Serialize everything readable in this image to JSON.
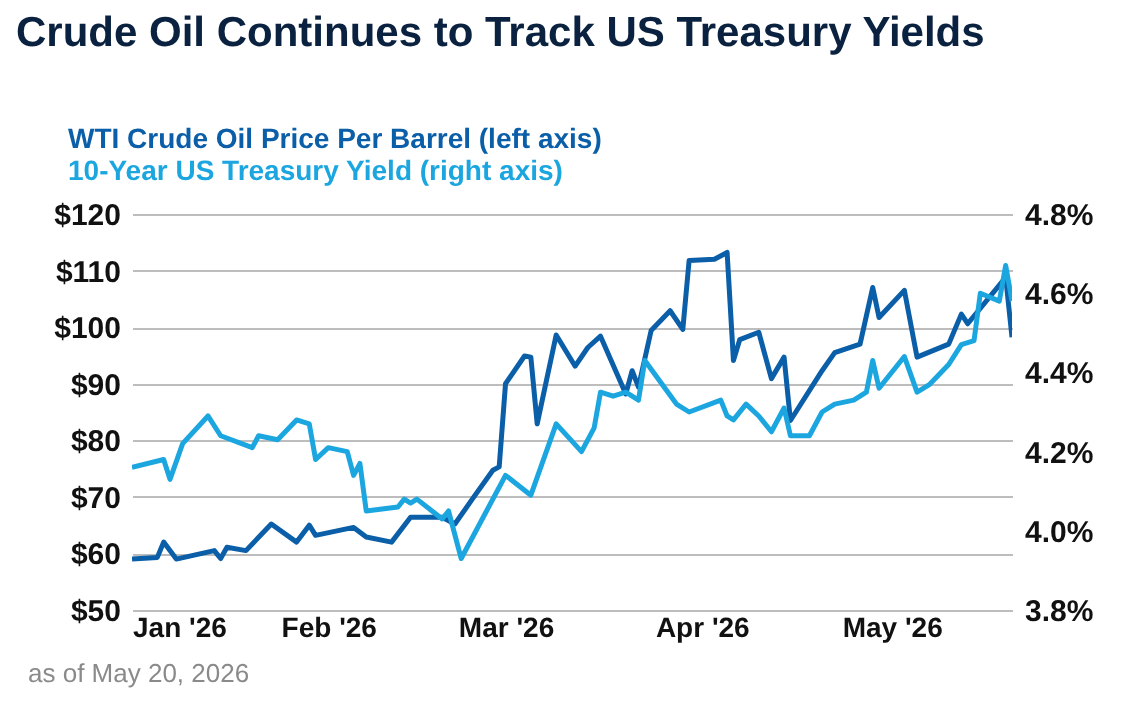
{
  "chart_data": {
    "type": "line",
    "title": "Crude Oil Continues to Track US Treasury Yields",
    "annotations": [
      "as of May 20, 2026"
    ],
    "xlim": [
      "2026-01-01",
      "2026-05-20"
    ],
    "xticks": [
      {
        "value": "2026-01-01",
        "label": "Jan '26"
      },
      {
        "value": "2026-02-01",
        "label": "Feb '26"
      },
      {
        "value": "2026-03-01",
        "label": "Mar '26"
      },
      {
        "value": "2026-04-01",
        "label": "Apr '26"
      },
      {
        "value": "2026-05-01",
        "label": "May '26"
      }
    ],
    "ylim": [
      50,
      120
    ],
    "yticks": [
      {
        "value": 50,
        "label": "$50"
      },
      {
        "value": 60,
        "label": "$60"
      },
      {
        "value": 70,
        "label": "$70"
      },
      {
        "value": 80,
        "label": "$80"
      },
      {
        "value": 90,
        "label": "$90"
      },
      {
        "value": 100,
        "label": "$100"
      },
      {
        "value": 110,
        "label": "$110"
      },
      {
        "value": 120,
        "label": "$120"
      }
    ],
    "y2lim": [
      3.8,
      4.8
    ],
    "y2ticks": [
      {
        "value": 3.8,
        "label": "3.8%"
      },
      {
        "value": 4.0,
        "label": "4.0%"
      },
      {
        "value": 4.2,
        "label": "4.2%"
      },
      {
        "value": 4.4,
        "label": "4.4%"
      },
      {
        "value": 4.6,
        "label": "4.6%"
      },
      {
        "value": 4.8,
        "label": "4.8%"
      }
    ],
    "grid": "y",
    "legend": "top left",
    "series": [
      {
        "name": "WTI Crude Oil Price Per Barrel (left axis)",
        "color": "#0b5ea8",
        "x": [
          "2026-01-01",
          "2026-01-05",
          "2026-01-06",
          "2026-01-08",
          "2026-01-14",
          "2026-01-15",
          "2026-01-16",
          "2026-01-19",
          "2026-01-23",
          "2026-01-27",
          "2026-01-29",
          "2026-01-30",
          "2026-02-05",
          "2026-02-07",
          "2026-02-11",
          "2026-02-14",
          "2026-02-19",
          "2026-02-21",
          "2026-02-24",
          "2026-02-27",
          "2026-02-28",
          "2026-03-01",
          "2026-03-04",
          "2026-03-05",
          "2026-03-06",
          "2026-03-09",
          "2026-03-12",
          "2026-03-14",
          "2026-03-16",
          "2026-03-20",
          "2026-03-21",
          "2026-03-22",
          "2026-03-24",
          "2026-03-27",
          "2026-03-29",
          "2026-03-30",
          "2026-04-03",
          "2026-04-05",
          "2026-04-06",
          "2026-04-07",
          "2026-04-10",
          "2026-04-12",
          "2026-04-14",
          "2026-04-15",
          "2026-04-20",
          "2026-04-22",
          "2026-04-26",
          "2026-04-28",
          "2026-04-29",
          "2026-05-03",
          "2026-05-05",
          "2026-05-10",
          "2026-05-12",
          "2026-05-13",
          "2026-05-19",
          "2026-05-20"
        ],
        "values": [
          59.0,
          59.3,
          62.0,
          59.0,
          60.5,
          59.1,
          61.1,
          60.5,
          65.2,
          62.0,
          65.0,
          63.2,
          64.6,
          62.9,
          62.0,
          66.4,
          66.4,
          65.2,
          70.0,
          74.7,
          75.3,
          90.0,
          94.9,
          94.7,
          82.9,
          98.6,
          93.1,
          96.4,
          98.4,
          88.2,
          92.3,
          89.4,
          99.4,
          102.9,
          99.6,
          111.8,
          112.0,
          113.2,
          94.1,
          97.8,
          99.1,
          90.9,
          94.7,
          83.5,
          92.3,
          95.5,
          97.0,
          107.0,
          101.7,
          106.5,
          94.7,
          97.0,
          102.3,
          100.6,
          108.8,
          98.2
        ]
      },
      {
        "name": "10-Year US Treasury Yield (right axis)",
        "color": "#1ca6e0",
        "axis": "y2",
        "x": [
          "2026-01-01",
          "2026-01-06",
          "2026-01-07",
          "2026-01-09",
          "2026-01-13",
          "2026-01-15",
          "2026-01-20",
          "2026-01-21",
          "2026-01-24",
          "2026-01-27",
          "2026-01-29",
          "2026-01-30",
          "2026-02-01",
          "2026-02-04",
          "2026-02-05",
          "2026-02-06",
          "2026-02-07",
          "2026-02-12",
          "2026-02-13",
          "2026-02-14",
          "2026-02-15",
          "2026-02-19",
          "2026-02-20",
          "2026-02-22",
          "2026-02-26",
          "2026-03-01",
          "2026-03-05",
          "2026-03-09",
          "2026-03-13",
          "2026-03-15",
          "2026-03-16",
          "2026-03-18",
          "2026-03-20",
          "2026-03-22",
          "2026-03-23",
          "2026-03-28",
          "2026-03-30",
          "2026-04-04",
          "2026-04-05",
          "2026-04-06",
          "2026-04-08",
          "2026-04-10",
          "2026-04-12",
          "2026-04-14",
          "2026-04-15",
          "2026-04-18",
          "2026-04-20",
          "2026-04-22",
          "2026-04-25",
          "2026-04-27",
          "2026-04-28",
          "2026-04-29",
          "2026-05-03",
          "2026-05-05",
          "2026-05-07",
          "2026-05-10",
          "2026-05-12",
          "2026-05-14",
          "2026-05-15",
          "2026-05-18",
          "2026-05-19",
          "2026-05-20"
        ],
        "values": [
          4.16,
          4.18,
          4.13,
          4.22,
          4.29,
          4.24,
          4.21,
          4.24,
          4.23,
          4.28,
          4.27,
          4.18,
          4.21,
          4.2,
          4.14,
          4.17,
          4.05,
          4.06,
          4.08,
          4.07,
          4.08,
          4.03,
          4.05,
          3.93,
          4.05,
          4.14,
          4.09,
          4.27,
          4.2,
          4.26,
          4.35,
          4.34,
          4.35,
          4.33,
          4.43,
          4.32,
          4.3,
          4.33,
          4.29,
          4.28,
          4.32,
          4.29,
          4.25,
          4.31,
          4.24,
          4.24,
          4.3,
          4.32,
          4.33,
          4.35,
          4.43,
          4.36,
          4.44,
          4.35,
          4.37,
          4.42,
          4.47,
          4.48,
          4.6,
          4.58,
          4.67,
          4.58
        ]
      }
    ]
  }
}
